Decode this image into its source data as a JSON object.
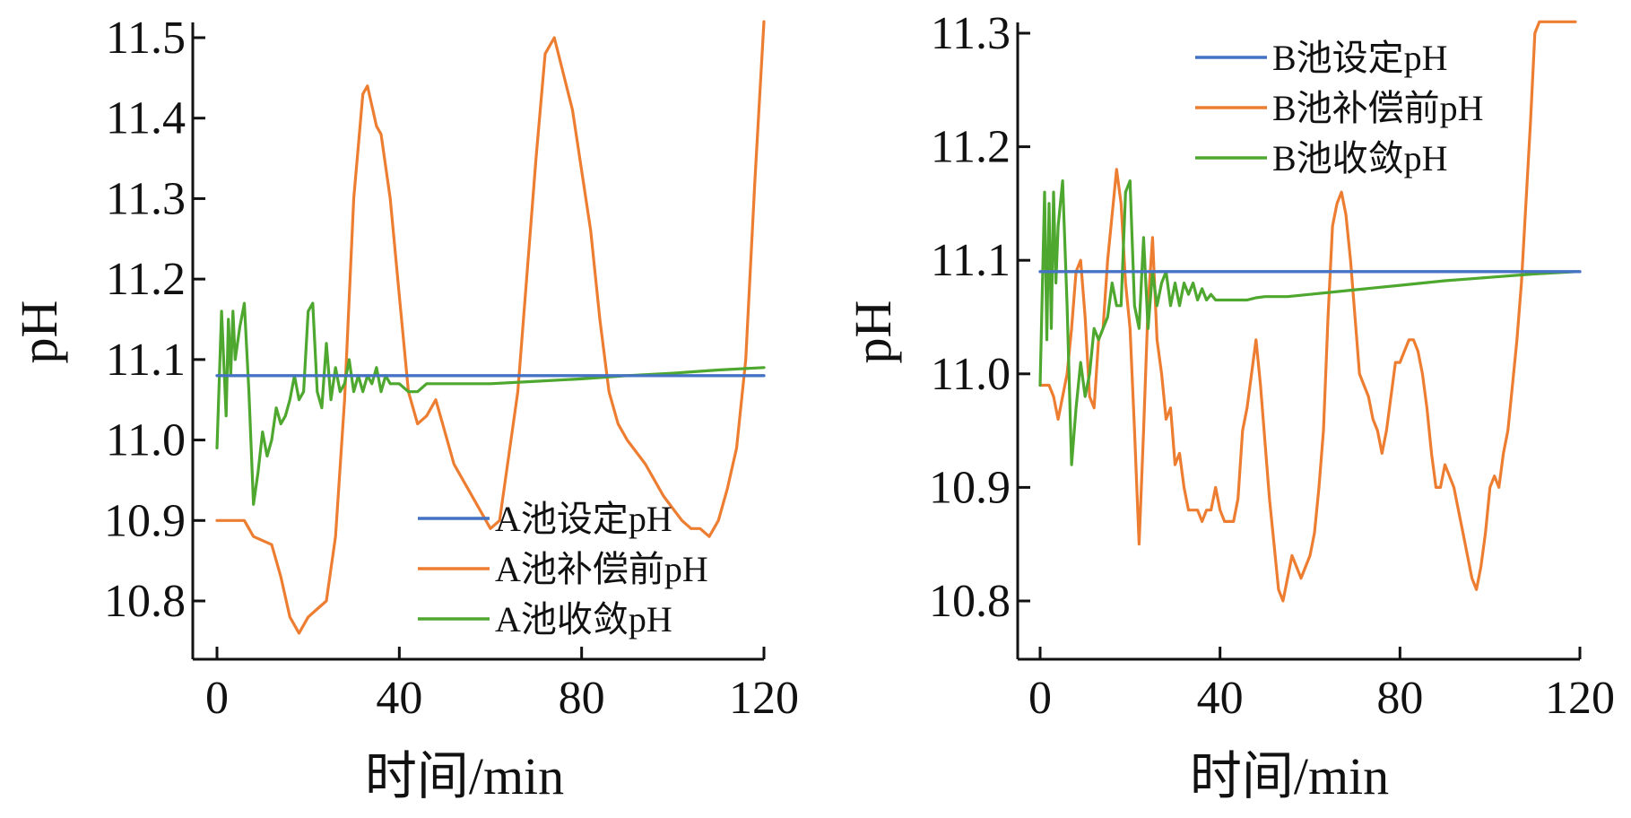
{
  "chart_data": [
    {
      "type": "line",
      "xlabel": "时间/min",
      "ylabel": "pH",
      "xlim": [
        0,
        120
      ],
      "ylim": [
        10.72,
        11.5
      ],
      "xticks": [
        "0",
        "40",
        "80",
        "120"
      ],
      "yticks": [
        "10.8",
        "10.9",
        "11.0",
        "11.1",
        "11.2",
        "11.3",
        "11.4",
        "11.5"
      ],
      "legend_position": "lower-right",
      "series": [
        {
          "name": "A池设定pH",
          "color": "#4472c4",
          "x": [
            0,
            120
          ],
          "y": [
            11.08,
            11.08
          ]
        },
        {
          "name": "A池补偿前pH",
          "color": "#ed7d31",
          "x": [
            0,
            6,
            8,
            12,
            14,
            16,
            18,
            20,
            22,
            24,
            26,
            28,
            30,
            32,
            33,
            35,
            36,
            38,
            40,
            42,
            44,
            46,
            48,
            50,
            52,
            56,
            60,
            62,
            66,
            70,
            72,
            74,
            78,
            82,
            84,
            86,
            88,
            90,
            94,
            98,
            102,
            104,
            106,
            108,
            110,
            112,
            114,
            116,
            118,
            120
          ],
          "y": [
            10.9,
            10.9,
            10.88,
            10.87,
            10.83,
            10.78,
            10.76,
            10.78,
            10.79,
            10.8,
            10.88,
            11.05,
            11.3,
            11.43,
            11.44,
            11.39,
            11.38,
            11.3,
            11.18,
            11.06,
            11.02,
            11.03,
            11.05,
            11.01,
            10.97,
            10.93,
            10.89,
            10.9,
            11.06,
            11.35,
            11.48,
            11.5,
            11.41,
            11.26,
            11.15,
            11.06,
            11.02,
            11.0,
            10.97,
            10.93,
            10.9,
            10.89,
            10.89,
            10.88,
            10.9,
            10.94,
            10.99,
            11.1,
            11.32,
            11.52
          ]
        },
        {
          "name": "A池收敛pH",
          "color": "#4ea72e",
          "x": [
            0,
            1,
            2,
            2.5,
            3,
            3.5,
            4,
            5,
            6,
            7,
            8,
            9,
            10,
            11,
            12,
            13,
            14,
            15,
            16,
            17,
            18,
            19,
            20,
            21,
            22,
            23,
            24,
            25,
            26,
            27,
            28,
            29,
            30,
            31,
            32,
            33,
            34,
            35,
            36,
            37,
            38,
            39,
            40,
            42,
            44,
            46,
            48,
            50,
            55,
            60,
            70,
            80,
            90,
            100,
            110,
            120
          ],
          "y": [
            10.99,
            11.16,
            11.03,
            11.15,
            11.08,
            11.16,
            11.1,
            11.14,
            11.17,
            11.06,
            10.92,
            10.96,
            11.01,
            10.98,
            11.0,
            11.04,
            11.02,
            11.03,
            11.05,
            11.08,
            11.05,
            11.06,
            11.16,
            11.17,
            11.06,
            11.04,
            11.12,
            11.05,
            11.09,
            11.06,
            11.07,
            11.1,
            11.06,
            11.08,
            11.06,
            11.08,
            11.07,
            11.09,
            11.06,
            11.08,
            11.07,
            11.07,
            11.07,
            11.06,
            11.06,
            11.07,
            11.07,
            11.07,
            11.07,
            11.07,
            11.073,
            11.076,
            11.08,
            11.083,
            11.087,
            11.09
          ]
        }
      ]
    },
    {
      "type": "line",
      "xlabel": "时间/min",
      "ylabel": "pH",
      "xlim": [
        0,
        120
      ],
      "ylim": [
        10.78,
        11.3
      ],
      "xticks": [
        "0",
        "40",
        "80",
        "120"
      ],
      "yticks": [
        "10.8",
        "10.9",
        "11.0",
        "11.1",
        "11.2",
        "11.3"
      ],
      "legend_position": "top-right",
      "series": [
        {
          "name": "B池设定pH",
          "color": "#4472c4",
          "x": [
            0,
            120
          ],
          "y": [
            11.09,
            11.09
          ]
        },
        {
          "name": "B池补偿前pH",
          "color": "#ed7d31",
          "x": [
            0,
            1,
            2,
            3,
            4,
            5,
            6,
            7,
            8,
            9,
            10,
            11,
            12,
            13,
            14,
            15,
            16,
            17,
            18,
            19,
            20,
            21,
            22,
            23,
            24,
            25,
            26,
            27,
            28,
            29,
            30,
            31,
            32,
            33,
            34,
            35,
            36,
            37,
            38,
            39,
            40,
            41,
            42,
            43,
            44,
            45,
            46,
            47,
            48,
            49,
            50,
            51,
            52,
            53,
            54,
            55,
            56,
            57,
            58,
            59,
            60,
            61,
            62,
            63,
            64,
            65,
            66,
            67,
            68,
            69,
            70,
            71,
            72,
            73,
            74,
            75,
            76,
            77,
            78,
            79,
            80,
            81,
            82,
            83,
            84,
            85,
            86,
            87,
            88,
            89,
            90,
            91,
            92,
            93,
            94,
            95,
            96,
            97,
            98,
            99,
            100,
            101,
            102,
            103,
            104,
            105,
            106,
            107,
            108,
            109,
            110,
            111,
            112,
            113,
            114,
            115,
            116,
            117,
            118,
            119
          ],
          "y": [
            10.99,
            10.99,
            10.99,
            10.98,
            10.96,
            10.98,
            11.0,
            11.04,
            11.09,
            11.1,
            11.05,
            10.98,
            10.97,
            11.03,
            11.04,
            11.1,
            11.14,
            11.18,
            11.15,
            11.08,
            11.04,
            10.95,
            10.85,
            10.95,
            11.06,
            11.12,
            11.03,
            11.0,
            10.96,
            10.97,
            10.92,
            10.93,
            10.9,
            10.88,
            10.88,
            10.88,
            10.87,
            10.88,
            10.88,
            10.9,
            10.88,
            10.87,
            10.87,
            10.87,
            10.89,
            10.95,
            10.97,
            11.0,
            11.03,
            10.99,
            10.94,
            10.89,
            10.85,
            10.81,
            10.8,
            10.82,
            10.84,
            10.83,
            10.82,
            10.83,
            10.84,
            10.86,
            10.9,
            10.95,
            11.05,
            11.13,
            11.15,
            11.16,
            11.14,
            11.1,
            11.05,
            11.0,
            10.99,
            10.98,
            10.96,
            10.95,
            10.93,
            10.95,
            10.98,
            11.01,
            11.01,
            11.02,
            11.03,
            11.03,
            11.02,
            11.0,
            10.97,
            10.93,
            10.9,
            10.9,
            10.92,
            10.91,
            10.9,
            10.88,
            10.86,
            10.84,
            10.82,
            10.81,
            10.83,
            10.86,
            10.9,
            10.91,
            10.9,
            10.93,
            10.95,
            10.99,
            11.03,
            11.08,
            11.15,
            11.22,
            11.3,
            11.31,
            11.31,
            11.31,
            11.31,
            11.31,
            11.31,
            11.31,
            11.31,
            11.31
          ]
        },
        {
          "name": "B池收敛pH",
          "color": "#4ea72e",
          "x": [
            0,
            1,
            1.5,
            2,
            2.5,
            3,
            3.5,
            4,
            5,
            6,
            7,
            8,
            9,
            10,
            11,
            12,
            13,
            14,
            15,
            16,
            17,
            18,
            19,
            20,
            21,
            22,
            23,
            24,
            25,
            26,
            27,
            28,
            29,
            30,
            31,
            32,
            33,
            34,
            35,
            36,
            37,
            38,
            39,
            40,
            42,
            44,
            46,
            48,
            50,
            55,
            60,
            70,
            80,
            90,
            100,
            110,
            119
          ],
          "y": [
            10.99,
            11.16,
            11.03,
            11.15,
            11.04,
            11.16,
            11.08,
            11.13,
            11.17,
            11.06,
            10.92,
            10.97,
            11.01,
            10.98,
            11.0,
            11.04,
            11.03,
            11.04,
            11.05,
            11.08,
            11.06,
            11.06,
            11.16,
            11.17,
            11.06,
            11.04,
            11.12,
            11.04,
            11.09,
            11.06,
            11.08,
            11.09,
            11.06,
            11.08,
            11.06,
            11.08,
            11.07,
            11.08,
            11.065,
            11.075,
            11.065,
            11.07,
            11.065,
            11.065,
            11.065,
            11.065,
            11.065,
            11.067,
            11.068,
            11.068,
            11.07,
            11.074,
            11.078,
            11.082,
            11.085,
            11.088,
            11.09
          ]
        }
      ]
    }
  ]
}
